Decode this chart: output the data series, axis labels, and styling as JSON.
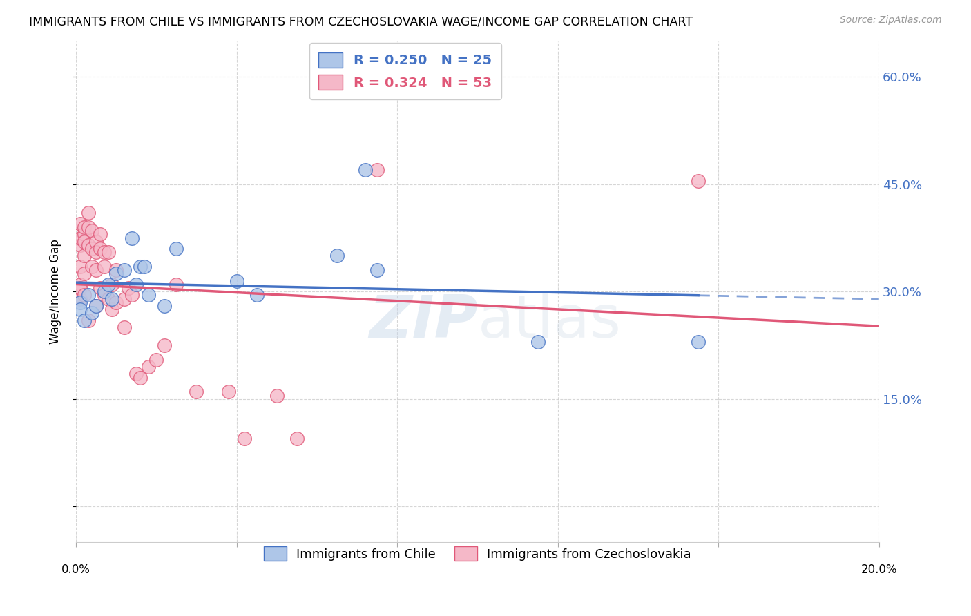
{
  "title": "IMMIGRANTS FROM CHILE VS IMMIGRANTS FROM CZECHOSLOVAKIA WAGE/INCOME GAP CORRELATION CHART",
  "source": "Source: ZipAtlas.com",
  "ylabel": "Wage/Income Gap",
  "xlim": [
    0.0,
    0.2
  ],
  "ylim": [
    -0.05,
    0.65
  ],
  "yticks": [
    0.0,
    0.15,
    0.3,
    0.45,
    0.6
  ],
  "ytick_labels": [
    "",
    "15.0%",
    "30.0%",
    "45.0%",
    "60.0%"
  ],
  "watermark_zip": "ZIP",
  "watermark_atlas": "atlas",
  "chile_R": 0.25,
  "chile_N": 25,
  "czech_R": 0.324,
  "czech_N": 53,
  "chile_color": "#aec6e8",
  "czech_color": "#f5b8c8",
  "chile_line_color": "#4472c4",
  "czech_line_color": "#e05878",
  "chile_x": [
    0.001,
    0.001,
    0.002,
    0.003,
    0.004,
    0.005,
    0.007,
    0.008,
    0.009,
    0.01,
    0.012,
    0.014,
    0.015,
    0.016,
    0.017,
    0.018,
    0.022,
    0.025,
    0.04,
    0.045,
    0.065,
    0.072,
    0.075,
    0.115,
    0.155
  ],
  "chile_y": [
    0.285,
    0.275,
    0.26,
    0.295,
    0.27,
    0.28,
    0.3,
    0.31,
    0.29,
    0.325,
    0.33,
    0.375,
    0.31,
    0.335,
    0.335,
    0.295,
    0.28,
    0.36,
    0.315,
    0.295,
    0.35,
    0.47,
    0.33,
    0.23,
    0.23
  ],
  "czech_x": [
    0.001,
    0.001,
    0.001,
    0.001,
    0.001,
    0.001,
    0.001,
    0.002,
    0.002,
    0.002,
    0.002,
    0.002,
    0.002,
    0.003,
    0.003,
    0.003,
    0.003,
    0.004,
    0.004,
    0.004,
    0.005,
    0.005,
    0.005,
    0.005,
    0.006,
    0.006,
    0.006,
    0.007,
    0.007,
    0.007,
    0.008,
    0.008,
    0.009,
    0.009,
    0.01,
    0.01,
    0.012,
    0.012,
    0.013,
    0.014,
    0.015,
    0.016,
    0.018,
    0.02,
    0.022,
    0.025,
    0.03,
    0.038,
    0.042,
    0.05,
    0.055,
    0.075,
    0.155
  ],
  "czech_y": [
    0.29,
    0.365,
    0.375,
    0.395,
    0.335,
    0.31,
    0.305,
    0.38,
    0.39,
    0.37,
    0.35,
    0.325,
    0.295,
    0.41,
    0.39,
    0.365,
    0.26,
    0.385,
    0.36,
    0.335,
    0.37,
    0.355,
    0.33,
    0.28,
    0.38,
    0.36,
    0.305,
    0.355,
    0.335,
    0.295,
    0.355,
    0.29,
    0.31,
    0.275,
    0.33,
    0.285,
    0.29,
    0.25,
    0.305,
    0.295,
    0.185,
    0.18,
    0.195,
    0.205,
    0.225,
    0.31,
    0.16,
    0.16,
    0.095,
    0.155,
    0.095,
    0.47,
    0.455
  ]
}
